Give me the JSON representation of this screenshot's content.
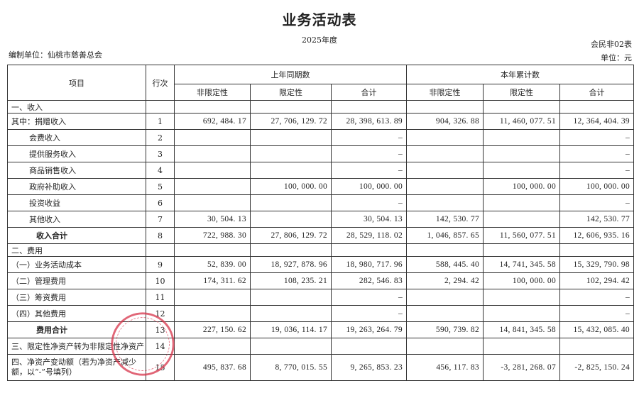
{
  "title": "业务活动表",
  "period": "2025年度",
  "form_no": "会民非02表",
  "org_label": "编制单位：仙桃市慈善总会",
  "unit_label": "单位：元",
  "header": {
    "item": "项目",
    "line_no": "行次",
    "prev": "上年同期数",
    "curr": "本年累计数",
    "unrestricted": "非限定性",
    "restricted": "限定性",
    "total": "合计"
  },
  "rows": [
    {
      "item": "一、收入",
      "no": "",
      "p_u": "",
      "p_r": "",
      "p_t": "",
      "c_u": "",
      "c_r": "",
      "c_t": ""
    },
    {
      "item": "其中：捐赠收入",
      "no": "1",
      "p_u": "692, 484. 17",
      "p_r": "27, 706, 129. 72",
      "p_t": "28, 398, 613. 89",
      "c_u": "904, 326. 88",
      "c_r": "11, 460, 077. 51",
      "c_t": "12, 364, 404. 39"
    },
    {
      "item": "会费收入",
      "no": "2",
      "p_u": "",
      "p_r": "",
      "p_t": "–",
      "c_u": "",
      "c_r": "",
      "c_t": "–"
    },
    {
      "item": "提供服务收入",
      "no": "3",
      "p_u": "",
      "p_r": "",
      "p_t": "–",
      "c_u": "",
      "c_r": "",
      "c_t": "–"
    },
    {
      "item": "商品销售收入",
      "no": "4",
      "p_u": "",
      "p_r": "",
      "p_t": "–",
      "c_u": "",
      "c_r": "",
      "c_t": "–"
    },
    {
      "item": "政府补助收入",
      "no": "5",
      "p_u": "",
      "p_r": "100, 000. 00",
      "p_t": "100, 000. 00",
      "c_u": "",
      "c_r": "100, 000. 00",
      "c_t": "100, 000. 00"
    },
    {
      "item": "投资收益",
      "no": "6",
      "p_u": "",
      "p_r": "",
      "p_t": "–",
      "c_u": "",
      "c_r": "",
      "c_t": "–"
    },
    {
      "item": "其他收入",
      "no": "7",
      "p_u": "30, 504. 13",
      "p_r": "",
      "p_t": "30, 504. 13",
      "c_u": "142, 530. 77",
      "c_r": "",
      "c_t": "142, 530. 77"
    },
    {
      "item": "收入合计",
      "no": "8",
      "p_u": "722, 988. 30",
      "p_r": "27, 806, 129. 72",
      "p_t": "28, 529, 118. 02",
      "c_u": "1, 046, 857. 65",
      "c_r": "11, 560, 077. 51",
      "c_t": "12, 606, 935. 16"
    },
    {
      "item": "二、费用",
      "no": "",
      "p_u": "",
      "p_r": "",
      "p_t": "",
      "c_u": "",
      "c_r": "",
      "c_t": ""
    },
    {
      "item": "（一）业务活动成本",
      "no": "9",
      "p_u": "52, 839. 00",
      "p_r": "18, 927, 878. 96",
      "p_t": "18, 980, 717. 96",
      "c_u": "588, 445. 40",
      "c_r": "14, 741, 345. 58",
      "c_t": "15, 329, 790. 98"
    },
    {
      "item": "（二）管理费用",
      "no": "10",
      "p_u": "174, 311. 62",
      "p_r": "108, 235. 21",
      "p_t": "282, 546. 83",
      "c_u": "2, 294. 42",
      "c_r": "100, 000. 00",
      "c_t": "102, 294. 42"
    },
    {
      "item": "（三）筹资费用",
      "no": "11",
      "p_u": "",
      "p_r": "",
      "p_t": "–",
      "c_u": "",
      "c_r": "",
      "c_t": "–"
    },
    {
      "item": "（四）其他费用",
      "no": "12",
      "p_u": "",
      "p_r": "",
      "p_t": "–",
      "c_u": "",
      "c_r": "",
      "c_t": "–"
    },
    {
      "item": "费用合计",
      "no": "13",
      "p_u": "227, 150. 62",
      "p_r": "19, 036, 114. 17",
      "p_t": "19, 263, 264. 79",
      "c_u": "590, 739. 82",
      "c_r": "14, 841, 345. 58",
      "c_t": "15, 432, 085. 40"
    },
    {
      "item": "三、限定性净资产转为非限定性净资产",
      "no": "14",
      "p_u": "",
      "p_r": "",
      "p_t": "",
      "c_u": "",
      "c_r": "",
      "c_t": ""
    },
    {
      "item": "四、净资产变动额（若为净资产减少额，以“-”号填列）",
      "no": "15",
      "p_u": "495, 837. 68",
      "p_r": "8, 770, 015. 55",
      "p_t": "9, 265, 853. 23",
      "c_u": "456, 117. 83",
      "c_r": "-3, 281, 268. 07",
      "c_t": "-2, 825, 150. 24"
    }
  ],
  "stamp_color": "#d8334a"
}
